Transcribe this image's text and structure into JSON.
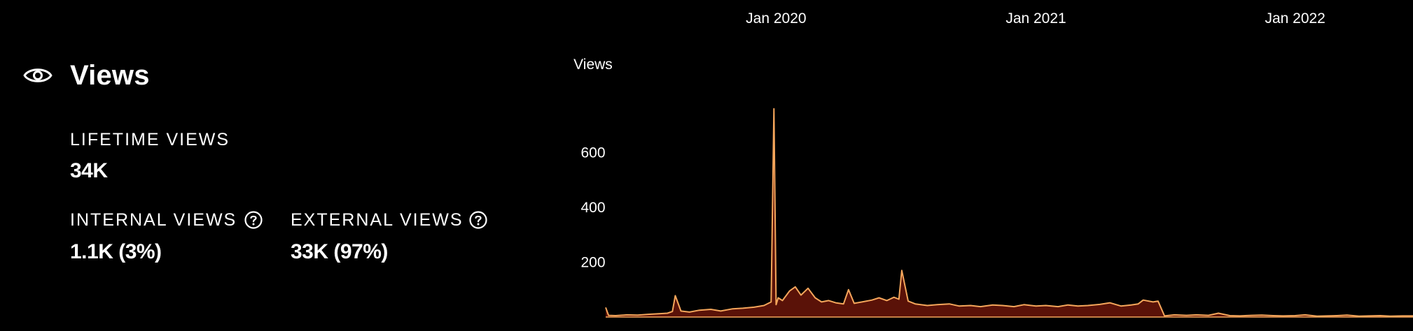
{
  "views_panel": {
    "title": "Views",
    "icon": "eye-icon",
    "lifetime": {
      "label": "LIFETIME VIEWS",
      "value": "34K"
    },
    "internal": {
      "label": "INTERNAL VIEWS",
      "value": "1.1K (3%)",
      "help_icon": "question-circle-icon"
    },
    "external": {
      "label": "EXTERNAL VIEWS",
      "value": "33K (97%)",
      "help_icon": "question-circle-icon"
    }
  },
  "chart_data": {
    "type": "area",
    "ylabel": "Views",
    "yticks": [
      200,
      400,
      600
    ],
    "ylim": [
      0,
      800
    ],
    "x_axis_position": "top",
    "xticks": [
      "Jan 2020",
      "Jan 2021",
      "Jan 2022"
    ],
    "xlim": [
      "2019-05-06",
      "2022-06-16"
    ],
    "grid": false,
    "colors": {
      "fill": "#5a1208",
      "line": "#f5a65b",
      "background": "#000000"
    },
    "series": [
      {
        "x": [
          "2019-05-06",
          "2019-05-10",
          "2019-05-20",
          "2019-06-05",
          "2019-06-20",
          "2019-07-05",
          "2019-07-20",
          "2019-08-01",
          "2019-08-08",
          "2019-08-12",
          "2019-08-20",
          "2019-09-01",
          "2019-09-15",
          "2019-10-01",
          "2019-10-15",
          "2019-11-01",
          "2019-11-15",
          "2019-12-01",
          "2019-12-15",
          "2019-12-25",
          "2019-12-29",
          "2020-01-01",
          "2020-01-04",
          "2020-01-10",
          "2020-01-20",
          "2020-01-28",
          "2020-02-05",
          "2020-02-15",
          "2020-02-25",
          "2020-03-05",
          "2020-03-15",
          "2020-03-25",
          "2020-04-05",
          "2020-04-12",
          "2020-04-20",
          "2020-05-01",
          "2020-05-15",
          "2020-05-25",
          "2020-06-05",
          "2020-06-15",
          "2020-06-22",
          "2020-06-26",
          "2020-07-05",
          "2020-07-15",
          "2020-08-01",
          "2020-08-15",
          "2020-09-01",
          "2020-09-15",
          "2020-10-01",
          "2020-10-15",
          "2020-11-01",
          "2020-11-15",
          "2020-12-01",
          "2020-12-15",
          "2021-01-01",
          "2021-01-15",
          "2021-02-01",
          "2021-02-15",
          "2021-03-01",
          "2021-03-15",
          "2021-04-01",
          "2021-04-15",
          "2021-05-01",
          "2021-05-15",
          "2021-05-25",
          "2021-06-01",
          "2021-06-15",
          "2021-06-22",
          "2021-07-01",
          "2021-07-15",
          "2021-08-01",
          "2021-08-15",
          "2021-09-01",
          "2021-09-15",
          "2021-10-01",
          "2021-10-15",
          "2021-11-01",
          "2021-11-15",
          "2021-12-01",
          "2021-12-15",
          "2022-01-01",
          "2022-01-15",
          "2022-02-01",
          "2022-02-15",
          "2022-03-01",
          "2022-03-15",
          "2022-04-01",
          "2022-04-15",
          "2022-05-01",
          "2022-05-15",
          "2022-06-01",
          "2022-06-16"
        ],
        "values": [
          35,
          6,
          5,
          8,
          7,
          10,
          12,
          14,
          20,
          78,
          22,
          18,
          25,
          28,
          22,
          30,
          32,
          36,
          42,
          55,
          760,
          45,
          70,
          60,
          95,
          110,
          80,
          105,
          70,
          55,
          60,
          52,
          48,
          100,
          50,
          55,
          62,
          70,
          60,
          72,
          65,
          170,
          58,
          48,
          42,
          45,
          48,
          40,
          42,
          38,
          44,
          42,
          38,
          45,
          40,
          42,
          38,
          44,
          40,
          42,
          46,
          52,
          40,
          44,
          48,
          62,
          55,
          58,
          4,
          8,
          6,
          8,
          6,
          14,
          5,
          4,
          6,
          7,
          5,
          4,
          5,
          8,
          3,
          4,
          5,
          7,
          3,
          4,
          5,
          3,
          4,
          4
        ]
      }
    ]
  }
}
